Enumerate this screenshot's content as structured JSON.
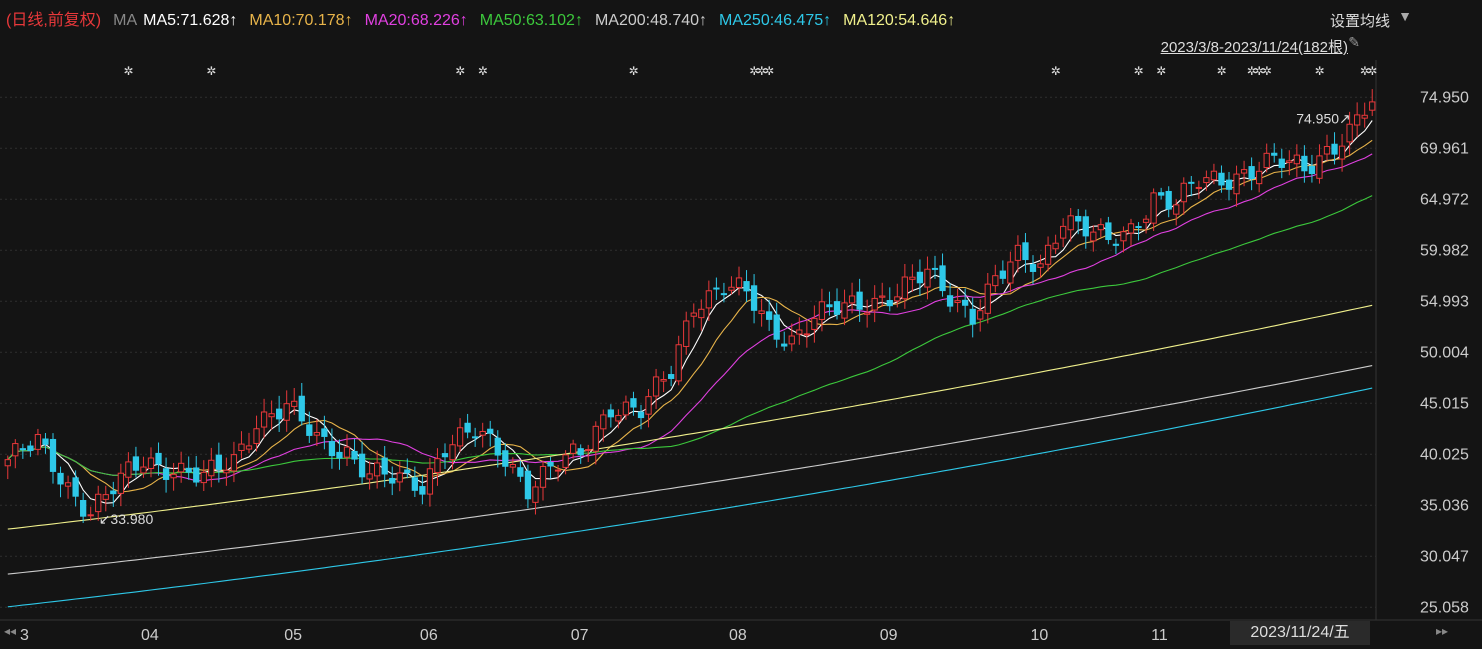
{
  "header": {
    "mode": "(日线,前复权)",
    "ma_label": "MA",
    "indicators": [
      {
        "text": "MA5:71.628↑",
        "color": "#ffffff"
      },
      {
        "text": "MA10:70.178↑",
        "color": "#e8b44a"
      },
      {
        "text": "MA20:68.226↑",
        "color": "#e040e0"
      },
      {
        "text": "MA50:63.102↑",
        "color": "#3cc83c"
      },
      {
        "text": "MA200:48.740↑",
        "color": "#cccccc"
      },
      {
        "text": "MA250:46.475↑",
        "color": "#2ec8e8"
      },
      {
        "text": "MA120:54.646↑",
        "color": "#f0f08c"
      }
    ],
    "settings_label": "设置均线",
    "range_label": "2023/3/8-2023/11/24(182根)"
  },
  "footer": {
    "current_date": "2023/11/24/五"
  },
  "chart_data": {
    "type": "candlestick",
    "x_ticks": [
      {
        "label": "3",
        "index": 0
      },
      {
        "label": "04",
        "index": 19
      },
      {
        "label": "05",
        "index": 38
      },
      {
        "label": "06",
        "index": 56
      },
      {
        "label": "07",
        "index": 76
      },
      {
        "label": "08",
        "index": 97
      },
      {
        "label": "09",
        "index": 117
      },
      {
        "label": "10",
        "index": 137
      },
      {
        "label": "11",
        "index": 153
      }
    ],
    "y_ticks": [
      74.95,
      69.961,
      64.972,
      59.982,
      54.993,
      50.004,
      45.015,
      40.025,
      35.036,
      30.047,
      25.058
    ],
    "ylim": [
      24.3,
      78.6
    ],
    "count": 182,
    "annotations": [
      {
        "text": "33.980",
        "index": 11,
        "value": 33.98,
        "kind": "low"
      },
      {
        "text": "74.950",
        "index": 181,
        "value": 74.95,
        "kind": "high"
      }
    ],
    "colors": {
      "up": "#e8383a",
      "down": "#2ec8e8"
    },
    "ohlc_keypoints": [
      [
        0,
        39.5
      ],
      [
        4,
        41.0
      ],
      [
        8,
        37.0
      ],
      [
        11,
        34.5
      ],
      [
        14,
        36.5
      ],
      [
        18,
        39.5
      ],
      [
        22,
        38.8
      ],
      [
        26,
        37.5
      ],
      [
        30,
        39.5
      ],
      [
        33,
        43.5
      ],
      [
        37,
        44.5
      ],
      [
        41,
        41.5
      ],
      [
        45,
        40.5
      ],
      [
        48,
        38.0
      ],
      [
        51,
        37.5
      ],
      [
        55,
        37.2
      ],
      [
        58,
        41.0
      ],
      [
        62,
        42.0
      ],
      [
        66,
        39.8
      ],
      [
        69,
        37.0
      ],
      [
        72,
        38.5
      ],
      [
        76,
        40.0
      ],
      [
        80,
        45.0
      ],
      [
        84,
        44.2
      ],
      [
        88,
        48.0
      ],
      [
        91,
        55.0
      ],
      [
        95,
        56.5
      ],
      [
        98,
        55.5
      ],
      [
        101,
        52.5
      ],
      [
        104,
        51.5
      ],
      [
        107,
        53.5
      ],
      [
        111,
        54.2
      ],
      [
        114,
        55.0
      ],
      [
        118,
        56.0
      ],
      [
        122,
        57.5
      ],
      [
        125,
        55.5
      ],
      [
        128,
        54.0
      ],
      [
        131,
        57.0
      ],
      [
        134,
        59.0
      ],
      [
        137,
        58.5
      ],
      [
        140,
        63.5
      ],
      [
        143,
        62.0
      ],
      [
        146,
        60.5
      ],
      [
        149,
        62.0
      ],
      [
        152,
        65.5
      ],
      [
        155,
        64.5
      ],
      [
        158,
        66.5
      ],
      [
        161,
        67.0
      ],
      [
        165,
        68.0
      ],
      [
        168,
        68.5
      ],
      [
        172,
        68.0
      ],
      [
        175,
        70.0
      ],
      [
        178,
        71.5
      ],
      [
        181,
        74.5
      ]
    ],
    "moving_averages": [
      {
        "name": "MA5",
        "color": "#ffffff"
      },
      {
        "name": "MA10",
        "color": "#e8b44a"
      },
      {
        "name": "MA20",
        "color": "#e040e0"
      },
      {
        "name": "MA50",
        "color": "#3cc83c"
      },
      {
        "name": "MA120",
        "color": "#f0f08c",
        "start": 32.7,
        "end": 54.6
      },
      {
        "name": "MA200",
        "color": "#cccccc",
        "start": 28.3,
        "end": 48.7
      },
      {
        "name": "MA250",
        "color": "#2ec8e8",
        "start": 25.1,
        "end": 46.5
      }
    ],
    "markers": [
      16,
      27,
      60,
      63,
      83,
      99,
      100,
      101,
      139,
      150,
      153,
      161,
      165,
      166,
      167,
      174,
      180,
      181
    ]
  }
}
